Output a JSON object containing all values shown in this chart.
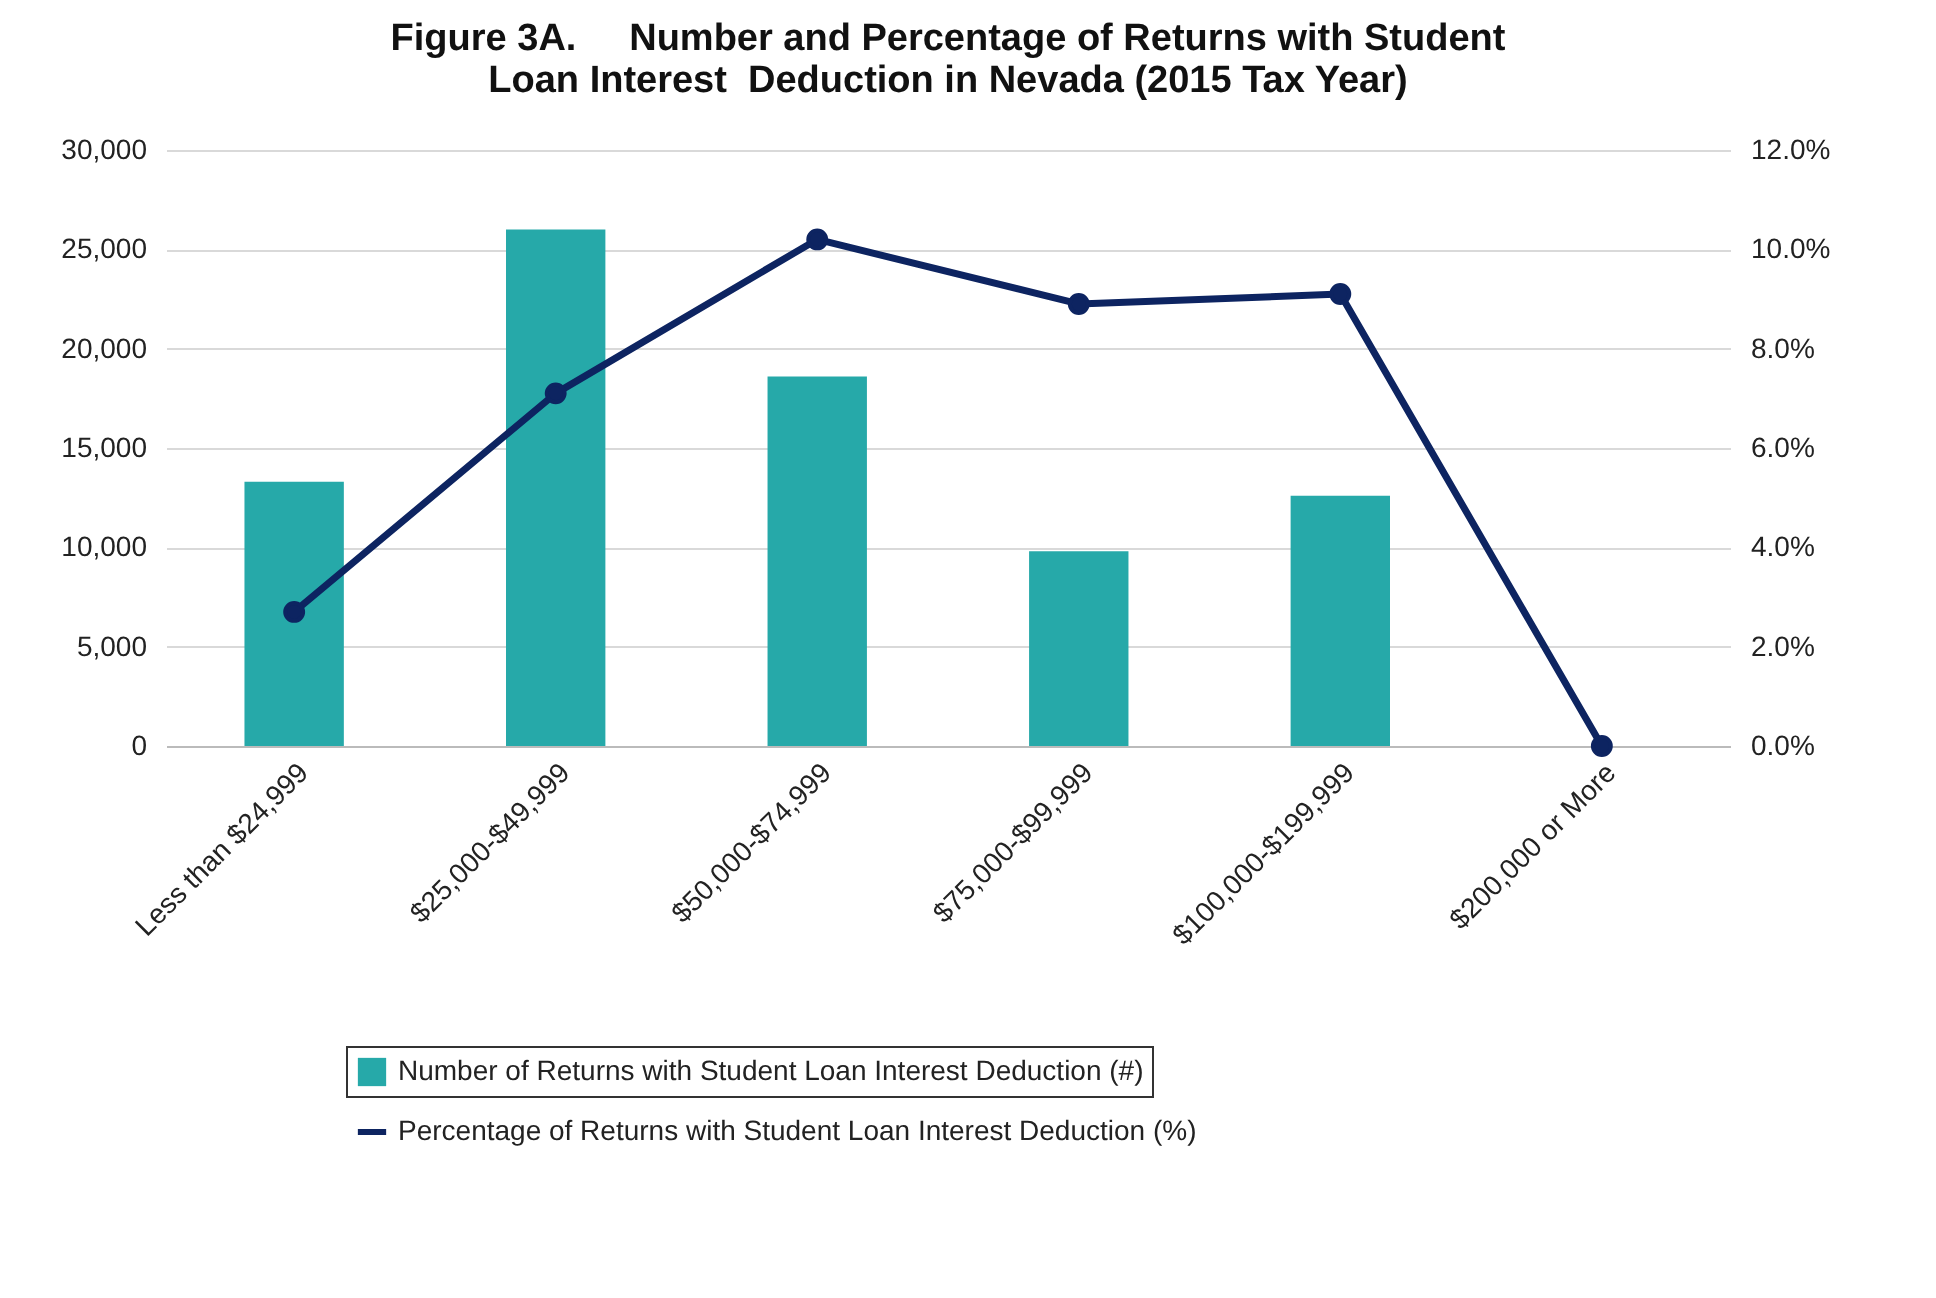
{
  "chart_data": {
    "type": "bar",
    "title": "Figure 3A.     Number and Percentage of Returns with Student Loan Interest  Deduction in Nevada (2015 Tax Year)",
    "categories": [
      "Less than $24,999",
      "$25,000-$49,999",
      "$50,000-$74,999",
      "$75,000-$99,999",
      "$100,000-$199,999",
      "$200,000 or More"
    ],
    "series": [
      {
        "name": "Number of Returns with Student Loan Interest Deduction (#)",
        "color": "#26a9a9",
        "values": [
          13300,
          26000,
          18600,
          9800,
          12600,
          0
        ]
      },
      {
        "name": "Percentage of Returns with Student Loan Interest Deduction (%)",
        "type": "line",
        "axis": "y2",
        "color": "#0d2461",
        "values": [
          2.7,
          7.1,
          10.2,
          8.9,
          9.1,
          0
        ]
      }
    ],
    "ylim": [
      0,
      30000
    ],
    "yticks": [
      {
        "value": 0,
        "label": "0"
      },
      {
        "value": 5000,
        "label": "5,000"
      },
      {
        "value": 10000,
        "label": "10,000"
      },
      {
        "value": 15000,
        "label": "15,000"
      },
      {
        "value": 20000,
        "label": "20,000"
      },
      {
        "value": 25000,
        "label": "25,000"
      },
      {
        "value": 30000,
        "label": "30,000"
      }
    ],
    "y2lim": [
      0,
      12
    ],
    "y2ticks": [
      {
        "value": 0,
        "label": "0.0%"
      },
      {
        "value": 2,
        "label": "2.0%"
      },
      {
        "value": 4,
        "label": "4.0%"
      },
      {
        "value": 6,
        "label": "6.0%"
      },
      {
        "value": 8,
        "label": "8.0%"
      },
      {
        "value": 10,
        "label": "10.0%"
      },
      {
        "value": 12,
        "label": "12.0%"
      }
    ],
    "grid": "y",
    "legend": "bottom",
    "marker": "circle",
    "line_style": "solid"
  }
}
